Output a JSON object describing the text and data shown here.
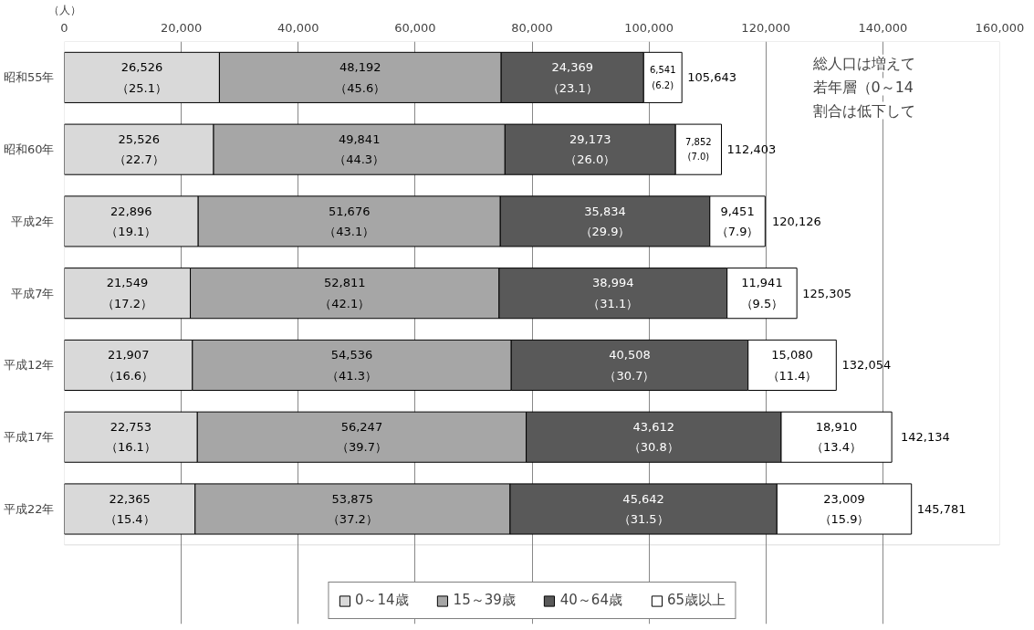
{
  "chart_data": {
    "type": "bar",
    "orientation": "horizontal",
    "stacked": true,
    "xlabel": "（人）",
    "categories": [
      "昭和55年",
      "昭和60年",
      "平成2年",
      "平成7年",
      "平成12年",
      "平成17年",
      "平成22年"
    ],
    "series": [
      {
        "name": "0～14歳",
        "color": "#d9d9d9",
        "values": [
          26526,
          25526,
          22896,
          21549,
          21907,
          22753,
          22365
        ],
        "value_labels": [
          "26,526\n（25.1）",
          "25,526\n（22.7）",
          "22,896\n（19.1）",
          "21,549\n（17.2）",
          "21,907\n（16.6）",
          "22,753\n（16.1）",
          "22,365\n（15.4）"
        ]
      },
      {
        "name": "15～39歳",
        "color": "#a6a6a6",
        "values": [
          48192,
          49841,
          51676,
          52811,
          54536,
          56247,
          53875
        ],
        "value_labels": [
          "48,192\n（45.6）",
          "49,841\n（44.3）",
          "51,676\n（43.1）",
          "52,811\n（42.1）",
          "54,536\n（41.3）",
          "56,247\n（39.7）",
          "53,875\n（37.2）"
        ]
      },
      {
        "name": "40～64歳",
        "color": "#595959",
        "values": [
          24369,
          29173,
          35834,
          38994,
          40508,
          43612,
          45642
        ],
        "value_labels": [
          "24,369\n（23.1）",
          "29,173\n（26.0）",
          "35,834\n（29.9）",
          "38,994\n（31.1）",
          "40,508\n（30.7）",
          "43,612\n（30.8）",
          "45,642\n（31.5）"
        ]
      },
      {
        "name": "65歳以上",
        "color": "#ffffff",
        "values": [
          6541,
          7852,
          9451,
          11941,
          15080,
          18910,
          23009
        ],
        "value_labels": [
          "6,541\n(6.2)",
          "7,852\n(7.0)",
          "9,451\n（7.9）",
          "11,941\n（9.5）",
          "15,080\n（11.4）",
          "18,910\n（13.4）",
          "23,009\n（15.9）"
        ]
      }
    ],
    "xlim": [
      0,
      160000
    ],
    "xticks": [
      0,
      {
        "value": 20000,
        "label": "20,000"
      },
      {
        "value": 40000,
        "label": "40,000"
      },
      {
        "value": 60000,
        "label": "60,000"
      },
      {
        "value": 80000,
        "label": "80,000"
      },
      {
        "value": 100000,
        "label": "100,000"
      },
      {
        "value": 120000,
        "label": "120,000"
      },
      {
        "value": 140000,
        "label": "140,000"
      },
      {
        "value": 160000,
        "label": "160,000"
      }
    ],
    "grid": "x",
    "legend": "bottom",
    "annotations": [
      "総人口は増えて",
      "若年層（0～14",
      "割合は低下して",
      {
        "text": "105,643",
        "x": 105643,
        "y": "昭和55年"
      },
      {
        "text": "112,403",
        "x": 112403,
        "y": "昭和60年"
      },
      {
        "text": "120,126",
        "x": 120126,
        "y": "平成2年"
      },
      {
        "text": "125,305",
        "x": 125305,
        "y": "平成7年"
      },
      {
        "text": "132,054",
        "x": 132054,
        "y": "平成12年"
      },
      {
        "text": "142,134",
        "x": 142134,
        "y": "平成17年"
      },
      {
        "text": "145,781",
        "x": 144891,
        "y": "平成22年"
      }
    ]
  }
}
